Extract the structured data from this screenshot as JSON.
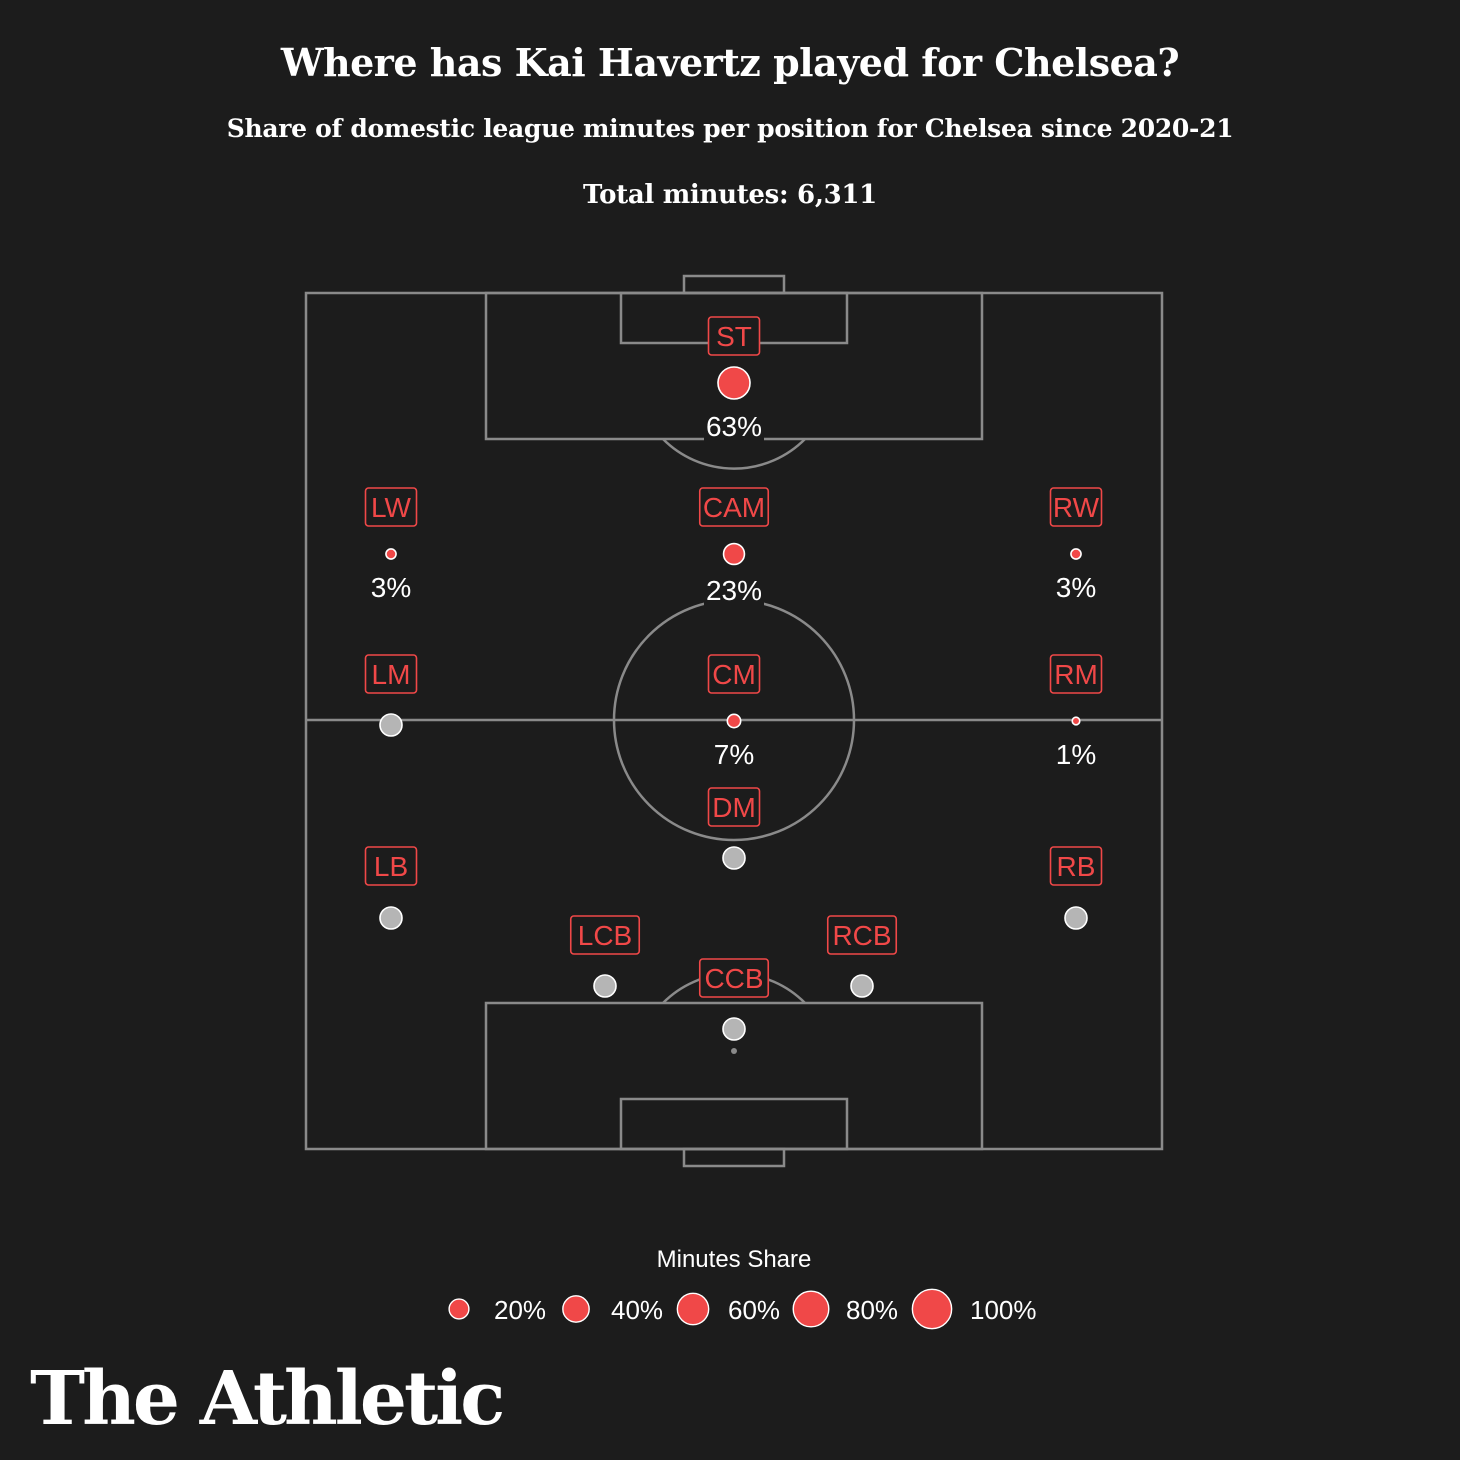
{
  "header": {
    "title": "Where has Kai Havertz played for Chelsea?",
    "subtitle": "Share of domestic league minutes per position for Chelsea since 2020-21",
    "total": "Total minutes: 6,311"
  },
  "colors": {
    "background": "#1c1c1c",
    "pitch_lines": "#8a8a8a",
    "accent": "#f04848",
    "unplayed": "#b5b5b5",
    "text": "#ffffff"
  },
  "chart_data": {
    "type": "bubble-pitch",
    "title": "Where has Kai Havertz played for Chelsea?",
    "subtitle": "Share of domestic league minutes per position for Chelsea since 2020-21",
    "total_minutes": 6311,
    "positions": [
      {
        "code": "ST",
        "share": 63,
        "label": "63%"
      },
      {
        "code": "LW",
        "share": 3,
        "label": "3%"
      },
      {
        "code": "CAM",
        "share": 23,
        "label": "23%"
      },
      {
        "code": "RW",
        "share": 3,
        "label": "3%"
      },
      {
        "code": "LM",
        "share": 0,
        "label": ""
      },
      {
        "code": "CM",
        "share": 7,
        "label": "7%"
      },
      {
        "code": "RM",
        "share": 1,
        "label": "1%"
      },
      {
        "code": "DM",
        "share": 0,
        "label": ""
      },
      {
        "code": "LB",
        "share": 0,
        "label": ""
      },
      {
        "code": "RB",
        "share": 0,
        "label": ""
      },
      {
        "code": "LCB",
        "share": 0,
        "label": ""
      },
      {
        "code": "RCB",
        "share": 0,
        "label": ""
      },
      {
        "code": "CCB",
        "share": 0,
        "label": ""
      }
    ],
    "legend": {
      "title": "Minutes Share",
      "items": [
        {
          "value": 20,
          "label": "20%"
        },
        {
          "value": 40,
          "label": "40%"
        },
        {
          "value": 60,
          "label": "60%"
        },
        {
          "value": 80,
          "label": "80%"
        },
        {
          "value": 100,
          "label": "100%"
        }
      ]
    }
  },
  "brand": "The Athletic"
}
